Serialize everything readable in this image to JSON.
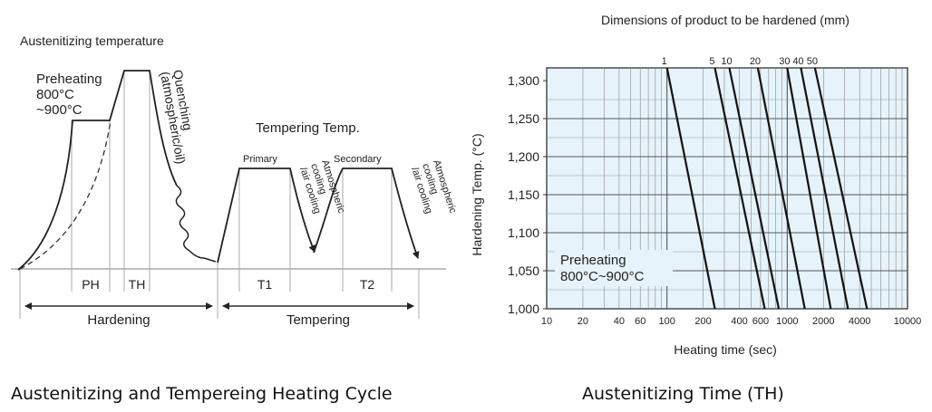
{
  "cycle": {
    "austenitizing_label": "Austenitizing temperature",
    "preheating": {
      "line1": "Preheating",
      "line2": "800°C",
      "line3": "~900°C"
    },
    "quenching": {
      "line1": "Quenching",
      "line2": "(atmospheric/oil)"
    },
    "tempering_temp_label": "Tempering Temp.",
    "primary_label": "Primary",
    "secondary_label": "Secondary",
    "cooling_primary": {
      "line1": "Atmospheric",
      "line2": "cooling",
      "line3": "/air cooling"
    },
    "cooling_secondary": {
      "line1": "Atmospheric",
      "line2": "cooling",
      "line3": "/air cooling"
    },
    "ph_label": "PH",
    "th_label": "TH",
    "t1_label": "T1",
    "t2_label": "T2",
    "hardening_label": "Hardening",
    "tempering_label": "Tempering"
  },
  "chart_data": {
    "type": "line",
    "title": "Dimensions of product to be hardened (mm)",
    "xlabel": "Heating time (sec)",
    "ylabel": "Hardening Temp. (°C)",
    "x_scale": "log",
    "xlim": [
      10,
      10000
    ],
    "ylim": [
      1000,
      1300
    ],
    "x_tick_labels": [
      {
        "value": 10,
        "label": "10"
      },
      {
        "value": 20,
        "label": "20"
      },
      {
        "value": 40,
        "label": "40"
      },
      {
        "value": 60,
        "label": "60"
      },
      {
        "value": 100,
        "label": "100"
      },
      {
        "value": 200,
        "label": "200"
      },
      {
        "value": 400,
        "label": "400"
      },
      {
        "value": 600,
        "label": "600"
      },
      {
        "value": 1000,
        "label": "1000"
      },
      {
        "value": 2000,
        "label": "2000"
      },
      {
        "value": 4000,
        "label": "4000"
      },
      {
        "value": 10000,
        "label": "10000"
      }
    ],
    "y_tick_labels": [
      {
        "value": 1000,
        "label": "1,000"
      },
      {
        "value": 1050,
        "label": "1,050"
      },
      {
        "value": 1100,
        "label": "1,100"
      },
      {
        "value": 1150,
        "label": "1,150"
      },
      {
        "value": 1200,
        "label": "1,200"
      },
      {
        "value": 1250,
        "label": "1,250"
      },
      {
        "value": 1300,
        "label": "1,300"
      }
    ],
    "grid": true,
    "series": [
      {
        "name": "1",
        "x": [
          100,
          250
        ],
        "y": [
          1320,
          1000
        ]
      },
      {
        "name": "5",
        "x": [
          250,
          650
        ],
        "y": [
          1320,
          1000
        ]
      },
      {
        "name": "10",
        "x": [
          330,
          850
        ],
        "y": [
          1320,
          1000
        ]
      },
      {
        "name": "20",
        "x": [
          570,
          1400
        ],
        "y": [
          1320,
          1000
        ]
      },
      {
        "name": "30",
        "x": [
          1000,
          2300
        ],
        "y": [
          1320,
          1000
        ]
      },
      {
        "name": "40",
        "x": [
          1300,
          3200
        ],
        "y": [
          1320,
          1000
        ]
      },
      {
        "name": "50",
        "x": [
          1700,
          4600
        ],
        "y": [
          1320,
          1000
        ]
      }
    ],
    "annotation": {
      "line1": "Preheating",
      "line2": "800°C~900°C"
    }
  },
  "captions": {
    "left": "Austenitizing and Tempereing Heating Cycle",
    "right": "Austenitizing Time (TH)"
  }
}
